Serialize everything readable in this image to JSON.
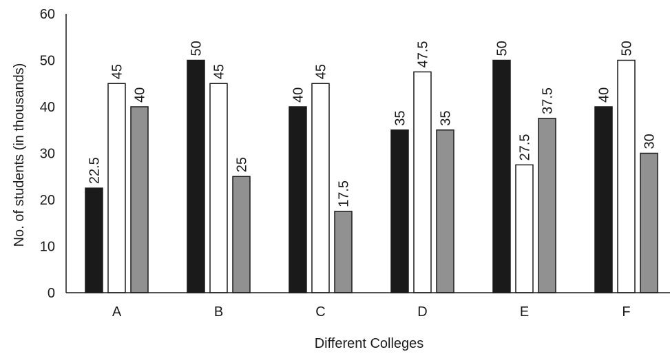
{
  "chart_data": {
    "type": "bar",
    "xlabel": "Different Colleges",
    "ylabel": "No. of students (in thousands)",
    "ylim": [
      0,
      60
    ],
    "yticks": [
      0,
      10,
      20,
      30,
      40,
      50,
      60
    ],
    "ytick_labels": [
      "0",
      "10",
      "20",
      "30",
      "40",
      "50",
      "60"
    ],
    "grid": false,
    "legend": "none",
    "categories": [
      "A",
      "B",
      "C",
      "D",
      "E",
      "F"
    ],
    "series": [
      {
        "color": "#1a1a1a",
        "values": [
          22.5,
          50,
          40,
          35,
          50,
          40
        ],
        "labels": [
          "22.5",
          "50",
          "40",
          "35",
          "50",
          "40"
        ]
      },
      {
        "color": "#ffffff",
        "values": [
          45,
          45,
          45,
          47.5,
          27.5,
          50
        ],
        "labels": [
          "45",
          "45",
          "45",
          "47.5",
          "27.5",
          "50"
        ]
      },
      {
        "color": "#919191",
        "values": [
          40,
          25,
          17.5,
          35,
          37.5,
          30
        ],
        "labels": [
          "40",
          "25",
          "17.5",
          "35",
          "37.5",
          "30"
        ]
      }
    ]
  }
}
